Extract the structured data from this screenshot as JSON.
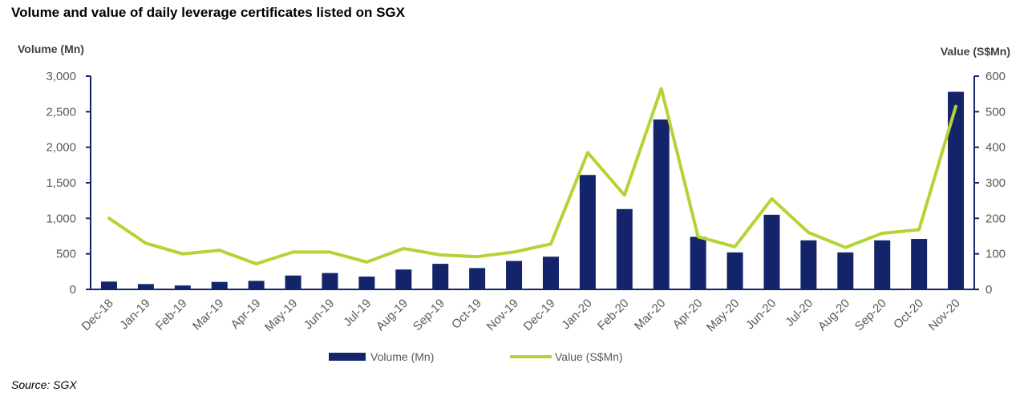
{
  "title": "Volume and value of daily leverage certificates listed on SGX",
  "source": "Source: SGX",
  "chart_data": {
    "type": "bar",
    "categories": [
      "Dec-18",
      "Jan-19",
      "Feb-19",
      "Mar-19",
      "Apr-19",
      "May-19",
      "Jun-19",
      "Jul-19",
      "Aug-19",
      "Sep-19",
      "Oct-19",
      "Nov-19",
      "Dec-19",
      "Jan-20",
      "Feb-20",
      "Mar-20",
      "Apr-20",
      "May-20",
      "Jun-20",
      "Jul-20",
      "Aug-20",
      "Sep-20",
      "Oct-20",
      "Nov-20"
    ],
    "series": [
      {
        "name": "Volume (Mn)",
        "type": "bar",
        "axis": "left",
        "color": "#14246b",
        "values": [
          110,
          75,
          55,
          105,
          120,
          195,
          230,
          180,
          280,
          360,
          300,
          400,
          460,
          1610,
          1130,
          2390,
          740,
          520,
          1050,
          690,
          520,
          690,
          710,
          2780
        ]
      },
      {
        "name": "Value (S$Mn)",
        "type": "line",
        "axis": "right",
        "color": "#b5d334",
        "values": [
          200,
          130,
          100,
          110,
          72,
          105,
          105,
          77,
          115,
          97,
          92,
          105,
          128,
          385,
          265,
          565,
          148,
          120,
          255,
          160,
          118,
          158,
          168,
          515
        ]
      }
    ],
    "ylabel_left": "Volume (Mn)",
    "ylabel_right": "Value (S$Mn)",
    "ylim_left": [
      0,
      3000
    ],
    "ylim_right": [
      0,
      600
    ],
    "yticks_left": [
      "0",
      "500",
      "1,000",
      "1,500",
      "2,000",
      "2,500",
      "3,000"
    ],
    "yticks_right": [
      "0",
      "100",
      "200",
      "300",
      "400",
      "500",
      "600"
    ],
    "grid": false,
    "legend_position": "bottom"
  }
}
